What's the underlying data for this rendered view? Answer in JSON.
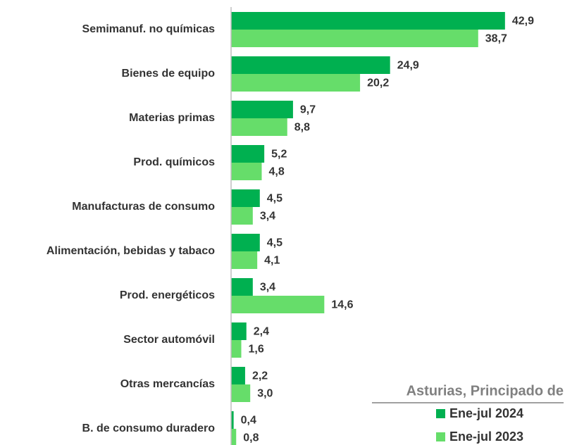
{
  "chart_data": {
    "type": "barh",
    "categories": [
      "Semimanuf. no químicas",
      "Bienes de equipo",
      "Materias primas",
      "Prod. químicos",
      "Manufacturas de consumo",
      "Alimentación, bebidas y tabaco",
      "Prod. energéticos",
      "Sector automóvil",
      "Otras mercancías",
      "B. de consumo duradero"
    ],
    "series": [
      {
        "name": "Ene-jul 2024",
        "color": "#00b050",
        "values": [
          42.9,
          24.9,
          9.7,
          5.2,
          4.5,
          4.5,
          3.4,
          2.4,
          2.2,
          0.4
        ],
        "value_labels": [
          "42,9",
          "24,9",
          "9,7",
          "5,2",
          "4,5",
          "4,5",
          "3,4",
          "2,4",
          "2,2",
          "0,4"
        ]
      },
      {
        "name": "Ene-jul 2023",
        "color": "#66dd6a",
        "values": [
          38.7,
          20.2,
          8.8,
          4.8,
          3.4,
          4.1,
          14.6,
          1.6,
          3.0,
          0.8
        ],
        "value_labels": [
          "38,7",
          "20,2",
          "8,8",
          "4,8",
          "3,4",
          "4,1",
          "14,6",
          "1,6",
          "3,0",
          "0,8"
        ]
      }
    ],
    "xlim": [
      0,
      47
    ],
    "legend_title": "Asturias, Principado de",
    "legend": "lower right"
  }
}
